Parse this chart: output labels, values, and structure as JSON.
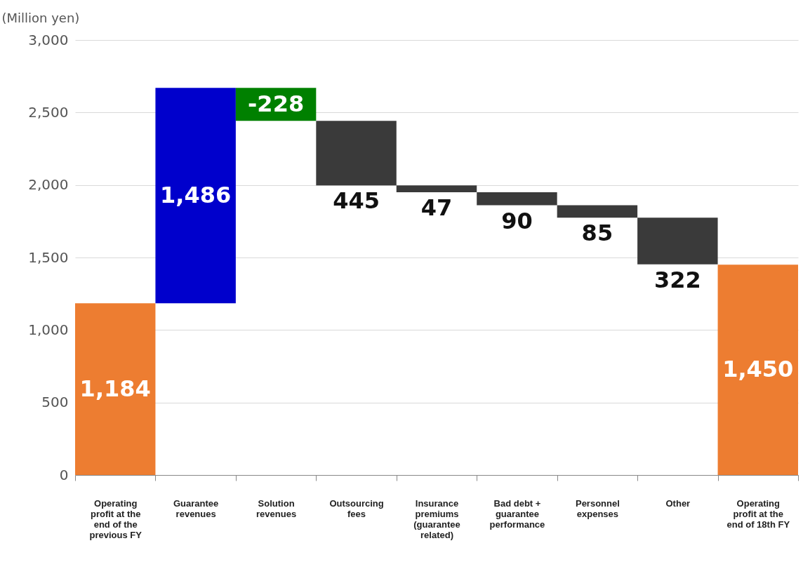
{
  "chart_data": {
    "type": "bar",
    "ylabel": "(Million yen)",
    "categories": [
      "Operating profit at the end of the previous FY",
      "Guarantee revenues",
      "Solution revenues",
      "Outsourcing fees",
      "Insurance premiums (guarantee related)",
      "Bad debt + guarantee performance",
      "Personnel expenses",
      "Other",
      "Operating profit at the end of 18th FY"
    ],
    "values": [
      1184,
      1486,
      -228,
      -445,
      -47,
      -90,
      -85,
      -322,
      1450
    ],
    "base": [
      0,
      1184,
      2670,
      2442,
      1997,
      1950,
      1860,
      1775,
      0
    ],
    "value_labels": [
      "1,184",
      "1,486",
      "-228",
      "445",
      "47",
      "90",
      "85",
      "322",
      "1,450"
    ],
    "colors": [
      "#ed7d31",
      "#0000cc",
      "#008000",
      "#3a3a3a",
      "#3a3a3a",
      "#3a3a3a",
      "#3a3a3a",
      "#3a3a3a",
      "#ed7d31"
    ],
    "ylim": [
      0,
      3000
    ],
    "yticks": [
      0,
      500,
      {
        "value": 1000,
        "label": "1,000"
      },
      {
        "value": 1500,
        "label": "1,500"
      },
      {
        "value": 2000,
        "label": "2,000"
      },
      {
        "value": 2500,
        "label": "2,500"
      },
      {
        "value": 3000,
        "label": "3,000"
      }
    ],
    "grid": "y",
    "legend": false
  }
}
